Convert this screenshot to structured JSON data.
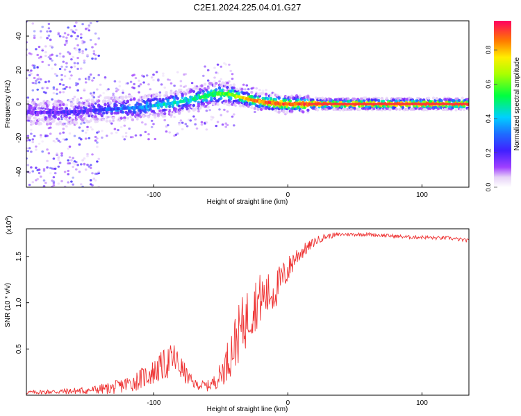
{
  "figure": {
    "title": "C2E1.2024.225.04.01.G27"
  },
  "chart_data": [
    {
      "type": "heatmap",
      "title": "",
      "xlabel": "Height of straight line (km)",
      "ylabel": "Frequency (Hz)",
      "xlim": [
        -195,
        135
      ],
      "ylim": [
        -49,
        49
      ],
      "xticks": [
        -100,
        0,
        100
      ],
      "yticks": [
        -40,
        -20,
        0,
        20,
        40
      ],
      "colorbar": {
        "label": "Normalized spectral amplitude",
        "range": [
          0,
          0.97
        ],
        "ticks": [
          0.0,
          0.2,
          0.4,
          0.6,
          0.8
        ]
      },
      "ridge": {
        "description_points_x": [
          -190,
          -170,
          -150,
          -130,
          -110,
          -90,
          -75,
          -65,
          -55,
          -45,
          -35,
          -25,
          -15,
          -5,
          5,
          20,
          50,
          100,
          135
        ],
        "frequency_hz": [
          -5,
          -5,
          -4,
          -3,
          -2,
          0,
          2,
          4,
          6,
          6,
          4,
          2,
          1,
          0,
          0,
          0,
          0,
          0,
          0
        ],
        "amplitude": [
          0.15,
          0.18,
          0.2,
          0.3,
          0.35,
          0.45,
          0.45,
          0.5,
          0.55,
          0.6,
          0.75,
          0.85,
          0.9,
          0.92,
          0.93,
          0.95,
          0.95,
          0.95,
          0.95
        ]
      }
    },
    {
      "type": "line",
      "title": "",
      "xlabel": "Height of straight line (km)",
      "ylabel": "SNR (10 * v/v)",
      "y_scale_label": "(x10",
      "y_scale_exp": "4",
      "xlim": [
        -195,
        135
      ],
      "ylim": [
        0,
        1.8
      ],
      "xticks": [
        -100,
        0,
        100
      ],
      "yticks": [
        0.5,
        1.0,
        1.5
      ],
      "series": [
        {
          "color": "#ee3333",
          "x": [
            -195,
            -170,
            -150,
            -130,
            -115,
            -100,
            -90,
            -85,
            -80,
            -75,
            -70,
            -60,
            -55,
            -50,
            -45,
            -40,
            -35,
            -30,
            -25,
            -20,
            -15,
            -10,
            -5,
            0,
            5,
            10,
            15,
            20,
            25,
            30,
            40,
            50,
            60,
            70,
            80,
            90,
            100,
            110,
            120,
            130,
            135
          ],
          "y": [
            0.03,
            0.04,
            0.05,
            0.08,
            0.14,
            0.25,
            0.35,
            0.4,
            0.3,
            0.2,
            0.12,
            0.1,
            0.14,
            0.22,
            0.38,
            0.55,
            0.72,
            0.85,
            0.98,
            1.05,
            1.08,
            1.12,
            1.25,
            1.35,
            1.48,
            1.55,
            1.6,
            1.66,
            1.7,
            1.72,
            1.74,
            1.74,
            1.74,
            1.73,
            1.72,
            1.71,
            1.71,
            1.7,
            1.7,
            1.68,
            1.67
          ],
          "noise": [
            0.02,
            0.03,
            0.04,
            0.07,
            0.1,
            0.14,
            0.18,
            0.18,
            0.14,
            0.09,
            0.05,
            0.06,
            0.08,
            0.14,
            0.22,
            0.3,
            0.32,
            0.32,
            0.3,
            0.28,
            0.25,
            0.22,
            0.18,
            0.15,
            0.12,
            0.09,
            0.06,
            0.05,
            0.04,
            0.03,
            0.02,
            0.02,
            0.02,
            0.02,
            0.02,
            0.02,
            0.02,
            0.02,
            0.02,
            0.02,
            0.02
          ]
        }
      ]
    }
  ]
}
